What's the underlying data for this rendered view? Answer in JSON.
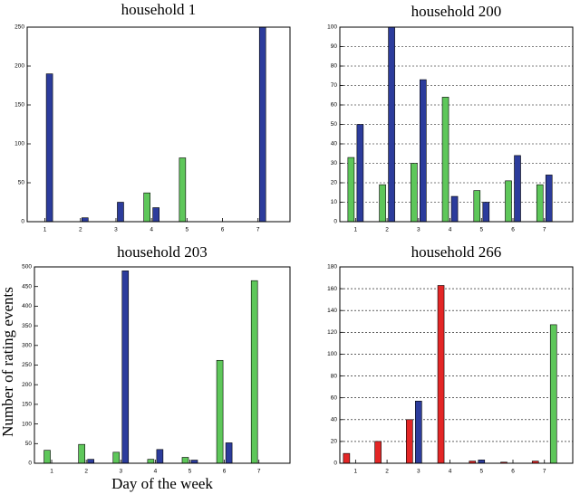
{
  "chart_data": [
    {
      "type": "bar",
      "title": "household 1",
      "categories": [
        "1",
        "2",
        "3",
        "4",
        "5",
        "6",
        "7"
      ],
      "series": [
        {
          "color": "#5ec75a",
          "values": [
            0,
            0,
            0,
            37,
            82,
            0,
            0
          ]
        },
        {
          "color": "#2c3c9c",
          "values": [
            190,
            5,
            25,
            18,
            0,
            0,
            250
          ]
        }
      ],
      "ylim": [
        0,
        250
      ],
      "yticks": [
        0,
        50,
        100,
        150,
        200,
        250
      ],
      "grid": false
    },
    {
      "type": "bar",
      "title": "household 200",
      "categories": [
        "1",
        "2",
        "3",
        "4",
        "5",
        "6",
        "7"
      ],
      "series": [
        {
          "color": "#5ec75a",
          "values": [
            33,
            19,
            30,
            64,
            16,
            21,
            19
          ]
        },
        {
          "color": "#2c3c9c",
          "values": [
            50,
            100,
            73,
            13,
            10,
            34,
            24
          ]
        }
      ],
      "ylim": [
        0,
        100
      ],
      "yticks": [
        0,
        10,
        20,
        30,
        40,
        50,
        60,
        70,
        80,
        90,
        100
      ],
      "grid": true
    },
    {
      "type": "bar",
      "title": "household 203",
      "ylabel": "Number of rating events",
      "xlabel": "Day of the week",
      "categories": [
        "1",
        "2",
        "3",
        "4",
        "5",
        "6",
        "7"
      ],
      "series": [
        {
          "color": "#5ec75a",
          "values": [
            33,
            48,
            28,
            10,
            15,
            262,
            465
          ]
        },
        {
          "color": "#2c3c9c",
          "values": [
            0,
            10,
            490,
            35,
            8,
            52,
            0
          ]
        }
      ],
      "ylim": [
        0,
        500
      ],
      "yticks": [
        0,
        50,
        100,
        150,
        200,
        250,
        300,
        350,
        400,
        450,
        500
      ],
      "grid": false
    },
    {
      "type": "bar",
      "title": "household 266",
      "categories": [
        "1",
        "2",
        "3",
        "4",
        "5",
        "6",
        "7"
      ],
      "series": [
        {
          "color": "#e32626",
          "values": [
            9,
            20,
            40,
            163,
            2,
            1,
            2
          ]
        },
        {
          "color": "#2c3c9c",
          "values": [
            0,
            0,
            57,
            0,
            3,
            0,
            0
          ]
        },
        {
          "color": "#5ec75a",
          "values": [
            0,
            0,
            0,
            0,
            0,
            0,
            127
          ]
        }
      ],
      "ylim": [
        0,
        180
      ],
      "yticks": [
        0,
        20,
        40,
        60,
        80,
        100,
        120,
        140,
        160,
        180
      ],
      "grid": true
    }
  ]
}
